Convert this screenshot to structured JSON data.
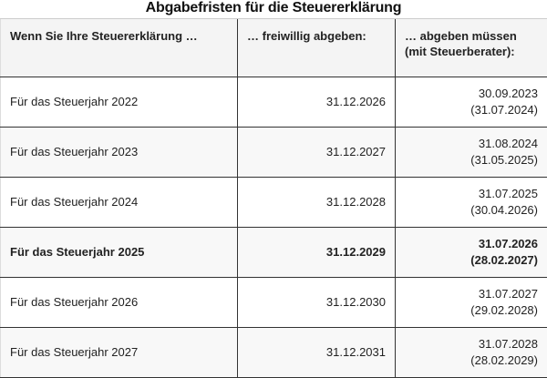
{
  "title": "Abgabefristen für die Steuererklärung",
  "headers": [
    "Wenn Sie Ihre Steuererklärung …",
    "… freiwillig abgeben:",
    "… abgeben müssen",
    "(mit Steuerberater):"
  ],
  "rows": [
    {
      "year": "Für das Steuerjahr 2022",
      "voluntary": "31.12.2026",
      "mandatory": "30.09.2023",
      "advisor": "(31.07.2024)"
    },
    {
      "year": "Für das Steuerjahr 2023",
      "voluntary": "31.12.2027",
      "mandatory": "31.08.2024",
      "advisor": "(31.05.2025)"
    },
    {
      "year": "Für das Steuerjahr 2024",
      "voluntary": "31.12.2028",
      "mandatory": "31.07.2025",
      "advisor": "(30.04.2026)"
    },
    {
      "year": "Für das Steuerjahr 2025",
      "voluntary": "31.12.2029",
      "mandatory": "31.07.2026",
      "advisor": "(28.02.2027)"
    },
    {
      "year": "Für das Steuerjahr 2026",
      "voluntary": "31.12.2030",
      "mandatory": "31.07.2027",
      "advisor": "(29.02.2028)"
    },
    {
      "year": "Für das Steuerjahr 2027",
      "voluntary": "31.12.2031",
      "mandatory": "31.07.2028",
      "advisor": "(28.02.2029)"
    }
  ],
  "highlighted_row": "Für das Steuerjahr 2025"
}
